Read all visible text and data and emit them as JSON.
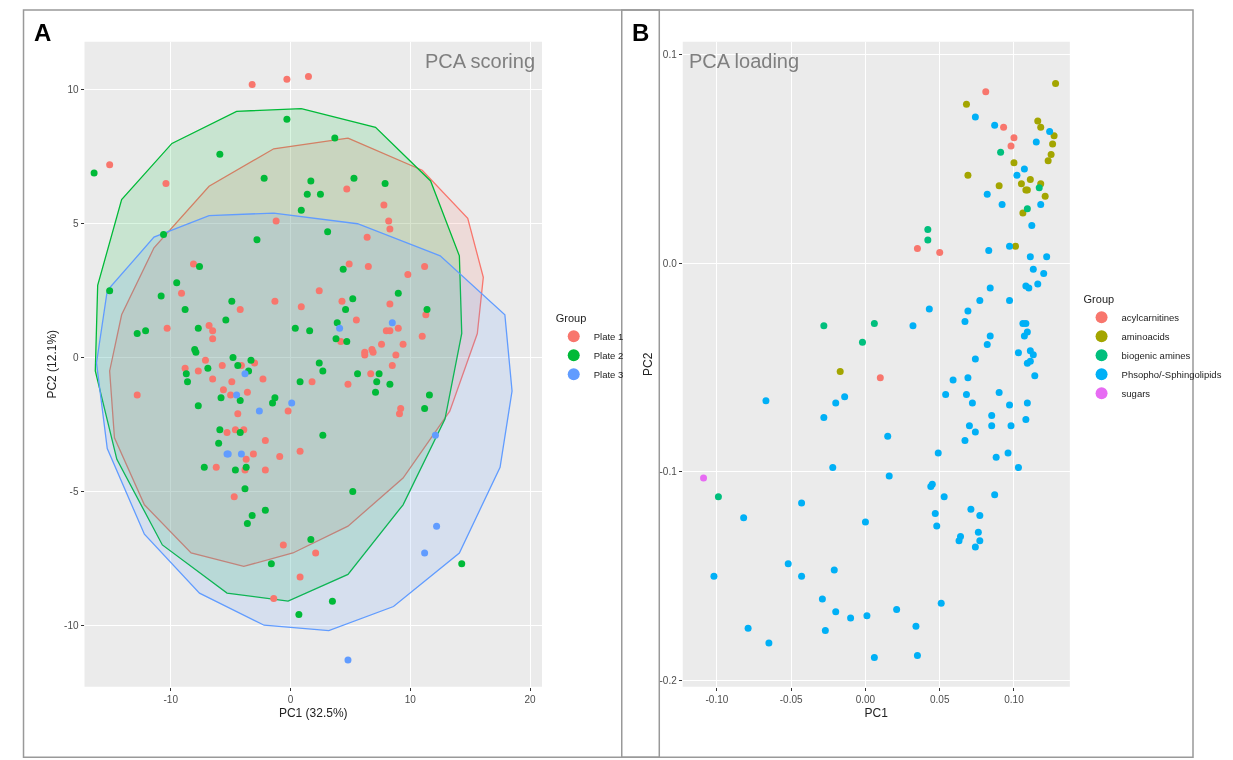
{
  "chart_data": [
    {
      "type": "scatter",
      "title": "A",
      "annotations": [
        "PCA scoring"
      ],
      "xlabel": "PC1 (32.5%)",
      "ylabel": "PC2 (12.1%)",
      "legend_title": "Group",
      "legend": "right",
      "grid": true,
      "marker": "circle",
      "xlim": [
        -17.2,
        21
      ],
      "ylim": [
        -12.3,
        11.8
      ],
      "xticks": [
        -10,
        0,
        10,
        20
      ],
      "yticks": [
        -10,
        -5,
        0,
        5,
        10
      ],
      "series": [
        {
          "type": "area",
          "marker": "none",
          "color": "#F8766D",
          "x": [
            4.8,
            11.0,
            14.8,
            16.1,
            15.6,
            13.3,
            9.4,
            4.8,
            0.2,
            -3.9,
            -8.3,
            -12.2,
            -14.7,
            -15.1,
            -14.1,
            -11.4,
            -6.8,
            -1.4,
            4.8
          ],
          "values": [
            8.2,
            7.0,
            5.2,
            3.0,
            0.9,
            -2.0,
            -4.5,
            -6.3,
            -7.3,
            -7.8,
            -7.3,
            -5.5,
            -3.0,
            -0.5,
            1.6,
            4.1,
            6.4,
            7.8,
            8.2
          ]
        },
        {
          "type": "area",
          "marker": "none",
          "color": "#00BA38",
          "x": [
            0.9,
            7.1,
            11.7,
            14.1,
            14.3,
            12.9,
            9.4,
            4.8,
            -0.2,
            -5.3,
            -10.7,
            -14.5,
            -16.3,
            -16.1,
            -14.1,
            -9.9,
            -4.5,
            0.9
          ],
          "values": [
            9.3,
            8.6,
            6.6,
            3.8,
            0.9,
            -2.3,
            -5.5,
            -8.1,
            -9.1,
            -8.8,
            -7.0,
            -3.8,
            -0.5,
            2.7,
            5.9,
            8.0,
            9.2,
            9.3
          ]
        },
        {
          "type": "area",
          "marker": "none",
          "color": "#619CFF",
          "x": [
            -1.4,
            5.6,
            12.5,
            17.9,
            18.5,
            17.5,
            14.1,
            8.6,
            3.2,
            -2.2,
            -7.6,
            -12.2,
            -15.3,
            -16.2,
            -15.3,
            -11.4,
            -6.8,
            -1.4
          ],
          "values": [
            5.4,
            5.0,
            3.8,
            1.6,
            -1.25,
            -4.1,
            -7.3,
            -9.3,
            -10.2,
            -10.0,
            -8.8,
            -6.6,
            -3.4,
            -0.2,
            2.5,
            4.5,
            5.3,
            5.4
          ]
        },
        {
          "name": "Plate 1",
          "color": "#F8766D",
          "x": [
            -12.8,
            -8.8,
            -7.7,
            -7.1,
            -6.5,
            -5.7,
            -5.6,
            -5.0,
            -4.9,
            -4.1,
            -4.4,
            -3.6,
            -3.0,
            -2.3,
            -5.3,
            -4.6,
            -3.9,
            -2.1,
            -3.1,
            -3.7,
            -6.2,
            -3.8,
            -2.1,
            -0.9,
            -0.2,
            0.8,
            1.8,
            4.8,
            6.2,
            6.9,
            6.7,
            8.5,
            8.8,
            9.2,
            9.1,
            -4.7,
            -0.6,
            2.1,
            0.8,
            -1.4,
            -3.2,
            -0.3,
            1.5,
            -15.1,
            -10.4,
            -1.2,
            -8.1,
            -9.1,
            -10.3,
            -6.8,
            -6.5,
            -6.5,
            -4.2,
            -1.3,
            0.9,
            2.4,
            7.8,
            8.2,
            8.3,
            6.4,
            4.9,
            6.5,
            9.8,
            11.2,
            4.3,
            5.5,
            8.3,
            11.3,
            8.0,
            8.3,
            9.0,
            9.4,
            11.0,
            4.2,
            6.2,
            6.8,
            7.6,
            4.7
          ],
          "values": [
            -1.4,
            -0.4,
            -0.5,
            -0.1,
            -0.8,
            -0.3,
            -1.2,
            -1.4,
            -0.9,
            -0.3,
            -2.1,
            -1.3,
            -0.2,
            -0.8,
            -2.8,
            -2.7,
            -2.7,
            -3.1,
            -3.6,
            -3.8,
            -4.1,
            -4.2,
            -4.2,
            -3.7,
            -2.0,
            -3.5,
            -0.9,
            -1.0,
            0.1,
            0.2,
            -0.6,
            -0.3,
            0.1,
            -1.9,
            -2.1,
            -5.2,
            -7.0,
            -7.3,
            -8.2,
            -9.0,
            10.2,
            10.4,
            10.5,
            7.2,
            6.5,
            5.1,
            3.5,
            2.4,
            1.1,
            1.2,
            1.0,
            0.7,
            1.8,
            2.1,
            1.9,
            2.5,
            5.7,
            5.1,
            4.8,
            4.5,
            3.5,
            3.4,
            3.1,
            3.4,
            2.1,
            1.4,
            2.0,
            1.6,
            1.0,
            1.0,
            1.1,
            0.5,
            0.8,
            0.6,
            0.2,
            0.3,
            0.5,
            6.3
          ]
        },
        {
          "name": "Plate 2",
          "color": "#00BA38",
          "x": [
            -7.9,
            -8.7,
            -8.6,
            -6.9,
            -7.7,
            -4.8,
            -4.4,
            -3.3,
            -3.5,
            -5.8,
            -4.2,
            -1.5,
            -1.3,
            0.8,
            2.4,
            2.7,
            5.6,
            7.4,
            7.2,
            7.1,
            8.3,
            11.6,
            11.2,
            -5.9,
            -6.0,
            -4.2,
            -7.2,
            -4.6,
            -3.7,
            -3.8,
            -3.2,
            -3.6,
            -2.1,
            2.7,
            5.2,
            1.7,
            -1.6,
            3.5,
            0.7,
            14.3,
            -16.4,
            -0.3,
            -5.9,
            -2.2,
            1.7,
            1.4,
            2.5,
            0.9,
            -10.6,
            -2.8,
            -7.6,
            -15.1,
            -9.5,
            -10.8,
            -8.8,
            -4.9,
            -12.8,
            -12.1,
            -7.7,
            -5.4,
            0.4,
            1.6,
            -8.0,
            3.7,
            5.3,
            7.9,
            3.1,
            4.4,
            5.2,
            4.6,
            9.0,
            11.4,
            3.9,
            3.8,
            4.7
          ],
          "values": [
            0.2,
            -0.6,
            -0.9,
            -0.4,
            -1.8,
            0.0,
            -0.3,
            -0.1,
            -0.5,
            -1.5,
            -1.6,
            -1.7,
            -1.5,
            -0.9,
            -0.2,
            -0.5,
            -0.6,
            -0.6,
            -0.9,
            -1.3,
            -1.0,
            -1.4,
            -1.9,
            -2.7,
            -3.2,
            -2.8,
            -4.1,
            -4.2,
            -4.1,
            -4.9,
            -5.9,
            -6.2,
            -5.7,
            -2.9,
            -5.0,
            -6.8,
            -7.7,
            -9.1,
            -9.6,
            -7.7,
            6.9,
            8.9,
            7.6,
            6.7,
            6.6,
            6.1,
            6.1,
            5.5,
            4.6,
            4.4,
            3.4,
            2.5,
            2.8,
            2.3,
            1.8,
            2.1,
            0.9,
            1.0,
            1.1,
            1.4,
            1.1,
            1.0,
            0.3,
            8.2,
            6.7,
            6.5,
            4.7,
            3.3,
            2.2,
            1.8,
            2.4,
            1.8,
            1.3,
            0.7,
            0.6
          ]
        },
        {
          "name": "Plate 3",
          "color": "#619CFF",
          "x": [
            -3.8,
            -4.5,
            -2.6,
            0.1,
            -5.3,
            -5.2,
            -4.1,
            12.1,
            12.2,
            11.2,
            4.8,
            4.1,
            8.5
          ],
          "values": [
            -0.6,
            -1.4,
            -2.0,
            -1.7,
            -3.6,
            -3.6,
            -3.6,
            -2.9,
            -6.3,
            -7.3,
            -11.3,
            1.1,
            1.3
          ]
        }
      ]
    },
    {
      "type": "scatter",
      "title": "B",
      "annotations": [
        "PCA loading"
      ],
      "xlabel": "PC1",
      "ylabel": "PC2",
      "legend_title": "Group",
      "legend": "right",
      "grid": true,
      "marker": "circle",
      "xlim": [
        -0.123,
        0.1376
      ],
      "ylim": [
        -0.203,
        0.106
      ],
      "xticks": [
        {
          "value": -0.1,
          "label": "-0.10"
        },
        {
          "value": -0.05,
          "label": "-0.05"
        },
        {
          "value": 0,
          "label": "0.00"
        },
        {
          "value": 0.05,
          "label": "0.05"
        },
        {
          "value": 0.1,
          "label": "0.10"
        }
      ],
      "yticks": [
        {
          "value": 0.1,
          "label": "0.1"
        },
        {
          "value": 0,
          "label": "0.0"
        },
        {
          "value": -0.1,
          "label": "-0.1"
        },
        {
          "value": -0.2,
          "label": "-0.2"
        }
      ],
      "series": [
        {
          "name": "acylcarnitines",
          "color": "#F8766D",
          "x": [
            0.081,
            0.093,
            0.1,
            0.098,
            0.035,
            0.05,
            0.01
          ],
          "values": [
            0.082,
            0.065,
            0.06,
            0.056,
            0.007,
            0.005,
            -0.055
          ]
        },
        {
          "name": "aminoacids",
          "color": "#A3A500",
          "x": [
            0.128,
            0.068,
            0.116,
            0.118,
            0.127,
            0.126,
            0.125,
            0.123,
            0.1,
            0.069,
            0.111,
            0.118,
            0.105,
            0.108,
            0.109,
            0.09,
            0.121,
            0.106,
            0.101,
            -0.017
          ],
          "values": [
            0.086,
            0.076,
            0.068,
            0.065,
            0.061,
            0.057,
            0.052,
            0.049,
            0.048,
            0.042,
            0.04,
            0.038,
            0.038,
            0.035,
            0.035,
            0.037,
            0.032,
            0.024,
            0.008,
            -0.052
          ]
        },
        {
          "name": "biogenic amines",
          "color": "#00BF7D",
          "x": [
            0.091,
            0.117,
            0.109,
            0.042,
            0.042,
            -0.028,
            0.006,
            -0.002,
            -0.099
          ],
          "values": [
            0.053,
            0.036,
            0.026,
            0.016,
            0.011,
            -0.03,
            -0.029,
            -0.038,
            -0.112
          ]
        },
        {
          "name": "Phsopho/-Sphingolipids",
          "color": "#00B0F6",
          "x": [
            0.074,
            0.087,
            0.124,
            0.115,
            0.102,
            0.107,
            0.082,
            0.092,
            0.118,
            0.112,
            0.083,
            0.097,
            0.111,
            0.122,
            0.113,
            0.12,
            0.116,
            0.108,
            0.11,
            0.084,
            0.097,
            0.077,
            0.069,
            0.043,
            0.067,
            0.032,
            0.106,
            0.108,
            0.109,
            0.107,
            0.084,
            0.082,
            0.103,
            0.111,
            0.113,
            0.109,
            0.111,
            0.074,
            0.114,
            0.059,
            0.069,
            0.054,
            0.068,
            0.072,
            0.09,
            0.097,
            0.109,
            0.085,
            0.085,
            0.098,
            0.108,
            0.07,
            0.074,
            0.067,
            0.049,
            0.096,
            0.088,
            0.103,
            0.087,
            0.044,
            0.045,
            0.053,
            0.071,
            0.077,
            0.047,
            0.048,
            0.076,
            0.064,
            0.063,
            0.077,
            0.074,
            -0.067,
            -0.02,
            -0.014,
            -0.028,
            0.015,
            -0.022,
            0.016,
            -0.043,
            -0.082,
            0.0,
            -0.052,
            -0.021,
            -0.102,
            -0.043,
            -0.029,
            0.021,
            -0.02,
            0.051,
            -0.01,
            0.001,
            -0.079,
            -0.027,
            0.034,
            -0.065,
            0.006,
            0.035
          ],
          "values": [
            0.07,
            0.066,
            0.063,
            0.058,
            0.042,
            0.045,
            0.033,
            0.028,
            0.028,
            0.018,
            0.006,
            0.008,
            0.003,
            0.003,
            -0.003,
            -0.005,
            -0.01,
            -0.011,
            -0.012,
            -0.012,
            -0.018,
            -0.018,
            -0.023,
            -0.022,
            -0.028,
            -0.03,
            -0.029,
            -0.029,
            -0.033,
            -0.035,
            -0.035,
            -0.039,
            -0.043,
            -0.042,
            -0.044,
            -0.048,
            -0.047,
            -0.046,
            -0.054,
            -0.056,
            -0.055,
            -0.063,
            -0.063,
            -0.067,
            -0.062,
            -0.068,
            -0.067,
            -0.073,
            -0.078,
            -0.078,
            -0.075,
            -0.078,
            -0.081,
            -0.085,
            -0.091,
            -0.091,
            -0.093,
            -0.098,
            -0.111,
            -0.107,
            -0.106,
            -0.112,
            -0.118,
            -0.121,
            -0.12,
            -0.126,
            -0.129,
            -0.131,
            -0.133,
            -0.133,
            -0.136,
            -0.066,
            -0.067,
            -0.064,
            -0.074,
            -0.083,
            -0.098,
            -0.102,
            -0.115,
            -0.122,
            -0.124,
            -0.144,
            -0.147,
            -0.15,
            -0.15,
            -0.161,
            -0.166,
            -0.167,
            -0.163,
            -0.17,
            -0.169,
            -0.175,
            -0.176,
            -0.174,
            -0.182,
            -0.189,
            -0.188
          ]
        },
        {
          "name": "sugars",
          "color": "#E76BF3",
          "x": [
            -0.109
          ],
          "values": [
            -0.103
          ]
        }
      ]
    }
  ]
}
